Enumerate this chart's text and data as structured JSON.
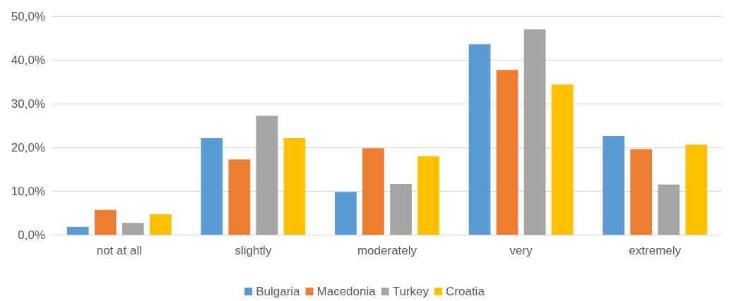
{
  "chart_data": {
    "type": "bar",
    "categories": [
      "not at all",
      "slightly",
      "moderately",
      "very",
      "extremely"
    ],
    "series": [
      {
        "name": "Bulgaria",
        "color": "#5b9bd5",
        "values": [
          1.8,
          22.1,
          9.8,
          43.6,
          22.6
        ]
      },
      {
        "name": "Macedonia",
        "color": "#ed7d31",
        "values": [
          5.7,
          17.2,
          19.8,
          37.7,
          19.6
        ]
      },
      {
        "name": "Turkey",
        "color": "#a5a5a5",
        "values": [
          2.7,
          27.2,
          11.6,
          47.0,
          11.5
        ]
      },
      {
        "name": "Croatia",
        "color": "#ffc000",
        "values": [
          4.7,
          22.1,
          18.0,
          34.4,
          20.6
        ]
      }
    ],
    "ylim": [
      0,
      50
    ],
    "yticks": [
      {
        "value": 0,
        "label": "0,0%"
      },
      {
        "value": 10,
        "label": "10,0%"
      },
      {
        "value": 20,
        "label": "20,0%"
      },
      {
        "value": 30,
        "label": "30,0%"
      },
      {
        "value": 40,
        "label": "40,0%"
      },
      {
        "value": 50,
        "label": "50,0%"
      }
    ],
    "grid": "y",
    "legend": "bottom"
  }
}
